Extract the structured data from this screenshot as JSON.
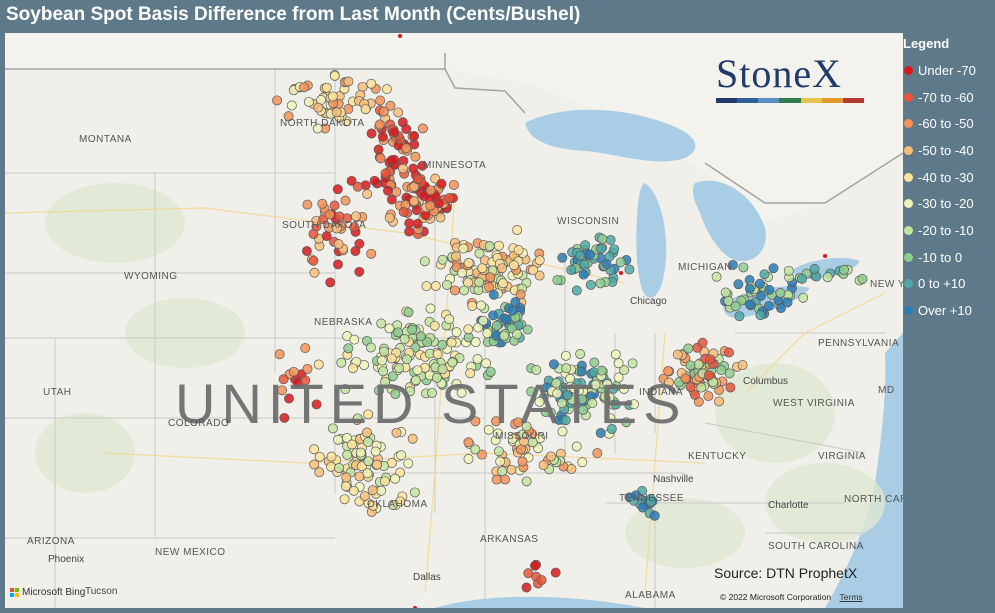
{
  "title": "Soybean Spot Basis Difference from Last Month (Cents/Bushel)",
  "legend": {
    "title": "Legend",
    "items": [
      {
        "label": "Under -70",
        "color": "#d7191c"
      },
      {
        "label": "-70 to -60",
        "color": "#e8553a"
      },
      {
        "label": "-60 to -50",
        "color": "#f4935a"
      },
      {
        "label": "-50 to -40",
        "color": "#f9bd7a"
      },
      {
        "label": "-40 to -30",
        "color": "#fce39b"
      },
      {
        "label": "-30 to -20",
        "color": "#eef5b8"
      },
      {
        "label": "-20 to -10",
        "color": "#c2e4a0"
      },
      {
        "label": "-10 to 0",
        "color": "#8fcd8e"
      },
      {
        "label": "0 to +10",
        "color": "#4fa9a6"
      },
      {
        "label": "Over +10",
        "color": "#2c7bb6"
      }
    ]
  },
  "brand": {
    "name": "StoneX",
    "bar_colors": [
      "#1f3a6b",
      "#2e5f9a",
      "#5b8fc4",
      "#2e7d4f",
      "#e6c34a",
      "#e39a2a",
      "#b23a2e"
    ]
  },
  "map": {
    "source": "Source: DTN ProphetX",
    "bing": "Microsoft Bing",
    "copyright": "© 2022 Microsoft Corporation",
    "terms": "Terms",
    "country_label": "UNITED STATES",
    "states": [
      "MONTANA",
      "NORTH DAKOTA",
      "SOUTH DAKOTA",
      "WYOMING",
      "NEBRASKA",
      "UTAH",
      "COLORADO",
      "ARIZONA",
      "NEW MEXICO",
      "OKLAHOMA",
      "ARKANSAS",
      "MISSOURI",
      "MINNESOTA",
      "KENTUCKY",
      "TENNESSEE",
      "WEST VIRGINIA",
      "VIRGINIA",
      "NORTH CAROLINA",
      "SOUTH CAROLINA",
      "ALABAMA",
      "PENNSYLVANIA",
      "NEW YORK",
      "INDIANA",
      "MICHIGAN",
      "WISCONSIN",
      "MD"
    ],
    "cities": [
      "Chicago",
      "Columbus",
      "Nashville",
      "Charlotte",
      "Phoenix",
      "Tucson",
      "Dallas"
    ]
  }
}
